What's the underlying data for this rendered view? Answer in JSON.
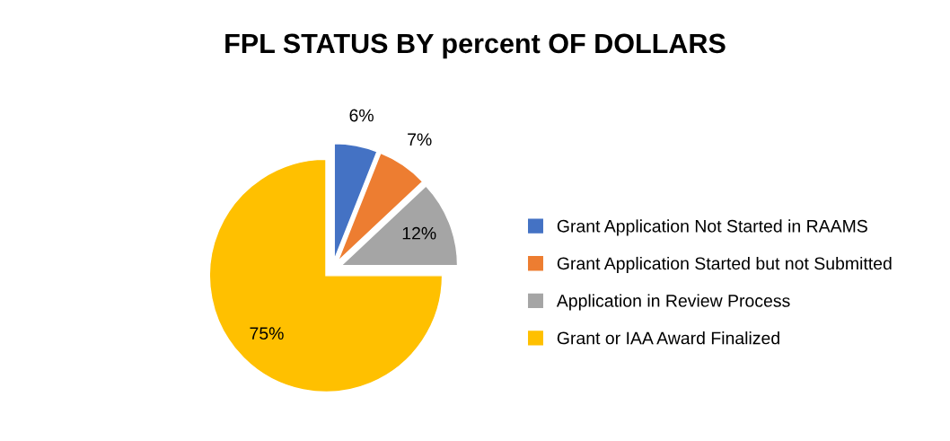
{
  "chart_data": {
    "type": "pie",
    "title": "FPL STATUS BY percent OF DOLLARS",
    "categories": [
      "Grant Application Not Started in RAAMS",
      "Grant Application Started but not Submitted",
      "Application in Review Process",
      "Grant or IAA Award Finalized"
    ],
    "values": [
      6,
      7,
      12,
      75
    ],
    "colors": [
      "#4472c4",
      "#ed7d31",
      "#a5a5a5",
      "#ffc000"
    ],
    "value_labels": [
      "6%",
      "7%",
      "12%",
      "75%"
    ],
    "legend": "right"
  }
}
